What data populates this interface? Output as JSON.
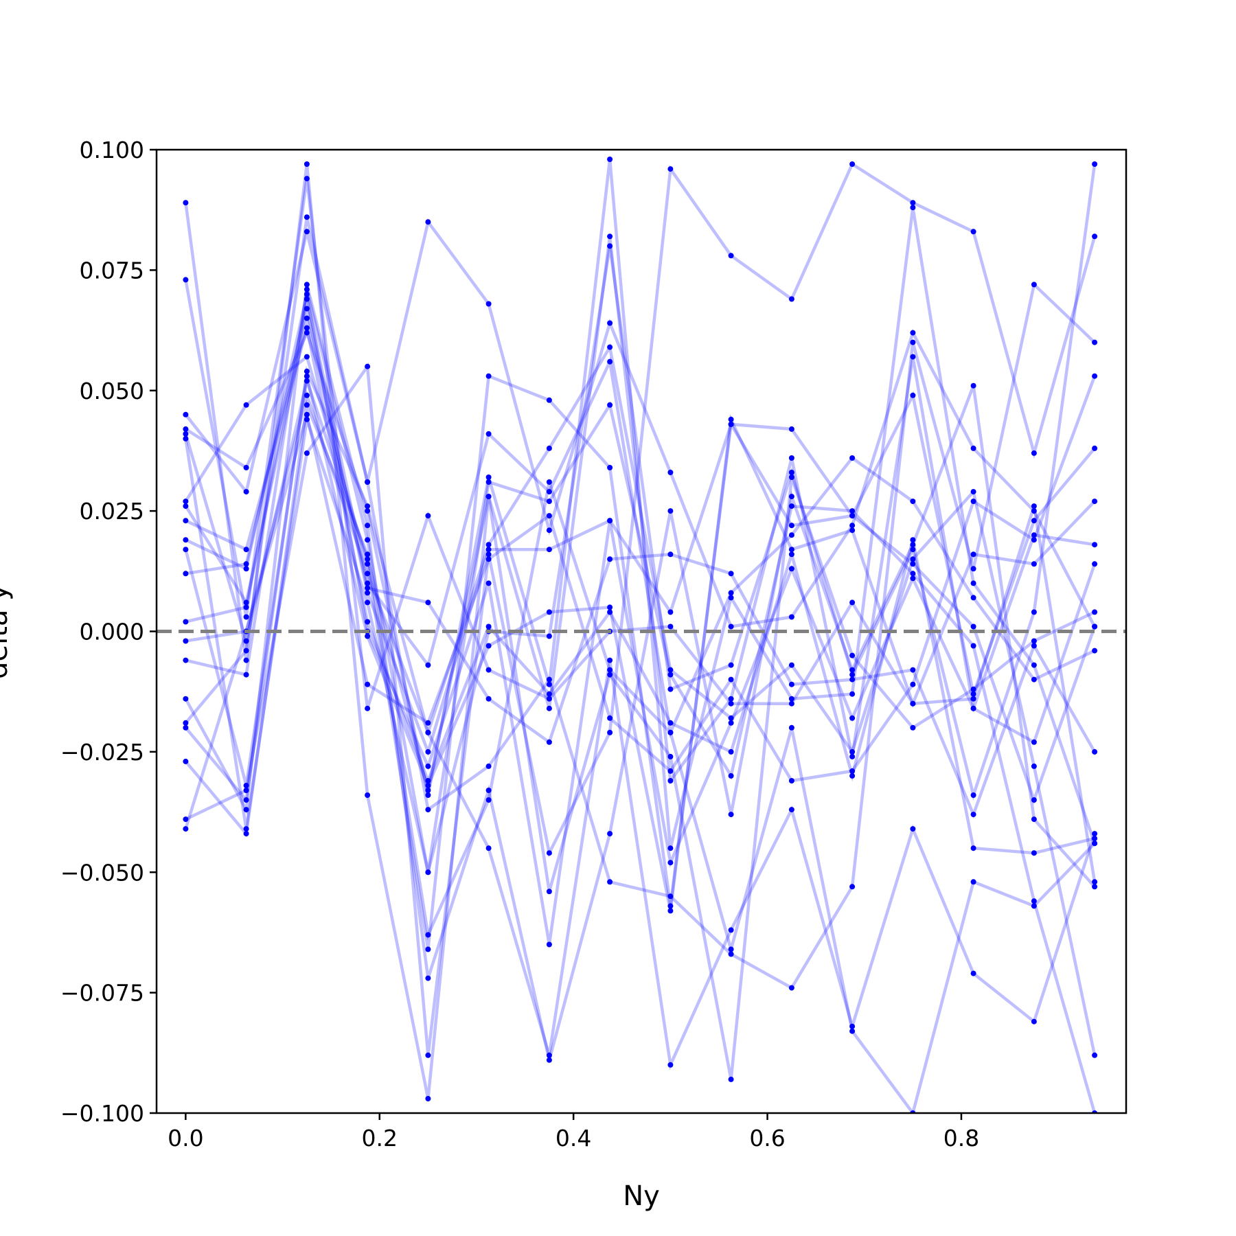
{
  "chart_data": {
    "type": "line",
    "title": "",
    "xlabel": "Ny",
    "ylabel": "delta y",
    "xlim": [
      -0.03,
      0.97
    ],
    "ylim": [
      -0.1,
      0.1
    ],
    "grid": false,
    "reference_line": {
      "y": 0.0,
      "style": "dashed",
      "color": "#808080"
    },
    "line_color": "#0000ff",
    "line_opacity": 0.25,
    "point_color": "#0000ff",
    "x_ticks": [
      0.0,
      0.2,
      0.4,
      0.6,
      0.8
    ],
    "x_tick_labels": [
      "0.0",
      "0.2",
      "0.4",
      "0.6",
      "0.8"
    ],
    "y_ticks": [
      -0.1,
      -0.075,
      -0.05,
      -0.025,
      0.0,
      0.025,
      0.05,
      0.075,
      0.1
    ],
    "y_tick_labels": [
      "−0.100",
      "−0.075",
      "−0.050",
      "−0.025",
      "0.000",
      "0.025",
      "0.050",
      "0.075",
      "0.100"
    ],
    "x": [
      0.0,
      0.0625,
      0.125,
      0.1875,
      0.25,
      0.3125,
      0.375,
      0.4375,
      0.5,
      0.5625,
      0.625,
      0.6875,
      0.75,
      0.8125,
      0.875,
      0.9375
    ],
    "series": [
      {
        "values": [
          0.045,
          0.029,
          0.083,
          0.031,
          0.085,
          0.068,
          0.021,
          0.064,
          0.033,
          0.001,
          0.003,
          0.022,
          0.062,
          0.038,
          0.025,
          0.001
        ]
      },
      {
        "values": [
          0.042,
          0.034,
          0.062,
          0.025,
          -0.034,
          0.032,
          -0.011,
          0.098,
          -0.045,
          0.007,
          -0.014,
          -0.013,
          0.088,
          0.01,
          -0.007,
          -0.044
        ]
      },
      {
        "values": [
          0.041,
          -0.002,
          0.052,
          0.015,
          -0.033,
          0.028,
          -0.016,
          0.082,
          -0.031,
          -0.014,
          0.036,
          -0.026,
          0.057,
          -0.016,
          -0.023,
          0.014
        ]
      },
      {
        "values": [
          0.04,
          -0.041,
          0.044,
          0.006,
          -0.05,
          0.0,
          -0.001,
          0.08,
          -0.012,
          -0.007,
          0.033,
          -0.009,
          0.017,
          -0.034,
          0.004,
          0.097
        ]
      },
      {
        "values": [
          0.027,
          0.047,
          0.057,
          0.014,
          -0.066,
          0.053,
          0.048,
          0.034,
          -0.057,
          0.043,
          0.022,
          0.024,
          0.049,
          -0.013,
          0.023,
          0.038
        ]
      },
      {
        "values": [
          0.026,
          0.006,
          0.065,
          0.009,
          0.006,
          -0.014,
          -0.023,
          0.015,
          0.016,
          0.012,
          -0.011,
          -0.01,
          -0.008,
          -0.038,
          -0.003,
          -0.025
        ]
      },
      {
        "values": [
          0.023,
          0.017,
          0.063,
          0.002,
          -0.031,
          0.001,
          -0.013,
          0.004,
          -0.019,
          -0.025,
          0.016,
          -0.03,
          0.019,
          -0.045,
          -0.046,
          -0.043
        ]
      },
      {
        "values": [
          0.019,
          0.013,
          0.07,
          0.0,
          -0.028,
          0.01,
          -0.065,
          0.023,
          -0.048,
          -0.019,
          0.013,
          -0.018,
          0.011,
          -0.016,
          0.02,
          0.018
        ]
      },
      {
        "values": [
          0.017,
          -0.032,
          0.053,
          -0.001,
          -0.032,
          -0.003,
          0.004,
          0.005,
          -0.058,
          0.044,
          0.017,
          0.021,
          -0.015,
          0.016,
          0.014,
          0.027
        ]
      },
      {
        "values": [
          0.012,
          0.014,
          0.067,
          0.008,
          -0.025,
          0.017,
          0.017,
          0.023,
          0.004,
          0.043,
          0.042,
          0.024,
          0.014,
          0.001,
          -0.035,
          0.001
        ]
      },
      {
        "values": [
          0.002,
          0.005,
          0.069,
          0.01,
          -0.007,
          0.041,
          0.029,
          0.056,
          -0.021,
          0.008,
          0.02,
          0.036,
          0.027,
          0.007,
          -0.01,
          -0.004
        ]
      },
      {
        "values": [
          -0.002,
          0.0,
          0.049,
          0.012,
          -0.021,
          0.018,
          0.038,
          0.059,
          -0.008,
          -0.018,
          -0.007,
          -0.025,
          0.015,
          0.029,
          -0.028,
          -0.088
        ]
      },
      {
        "values": [
          -0.006,
          -0.009,
          0.071,
          0.019,
          -0.05,
          0.031,
          0.027,
          0.047,
          -0.009,
          -0.03,
          0.026,
          0.025,
          0.012,
          -0.003,
          -0.056,
          -0.1
        ]
      },
      {
        "values": [
          -0.014,
          -0.037,
          0.072,
          0.022,
          -0.072,
          -0.033,
          -0.089,
          -0.042,
          0.025,
          -0.038,
          0.028,
          -0.008,
          0.018,
          0.051,
          -0.039,
          -0.053
        ]
      },
      {
        "values": [
          -0.019,
          -0.004,
          0.086,
          0.031,
          -0.037,
          -0.028,
          -0.01,
          -0.052,
          -0.055,
          -0.067,
          -0.074,
          -0.053,
          0.06,
          0.013,
          0.072,
          0.06
        ]
      },
      {
        "values": [
          -0.02,
          -0.035,
          0.054,
          0.026,
          -0.021,
          -0.045,
          -0.088,
          -0.006,
          -0.09,
          -0.062,
          -0.037,
          -0.082,
          -0.041,
          -0.071,
          -0.081,
          -0.042
        ]
      },
      {
        "values": [
          -0.027,
          -0.042,
          0.047,
          0.016,
          -0.063,
          -0.035,
          0.031,
          -0.008,
          -0.021,
          -0.066,
          -0.02,
          -0.083,
          -0.1,
          -0.052,
          -0.057,
          -0.044
        ]
      },
      {
        "values": [
          -0.039,
          -0.033,
          0.037,
          0.055,
          -0.088,
          0.016,
          -0.046,
          -0.021,
          0.096,
          0.078,
          0.069,
          0.097,
          0.089,
          0.083,
          0.037,
          0.082
        ]
      },
      {
        "values": [
          -0.041,
          0.0,
          0.045,
          -0.011,
          -0.019,
          0.015,
          0.024,
          -0.018,
          -0.029,
          -0.01,
          -0.031,
          -0.029,
          -0.011,
          0.027,
          0.019,
          0.053
        ]
      },
      {
        "values": [
          0.073,
          0.003,
          0.094,
          -0.016,
          0.024,
          -0.008,
          -0.014,
          0.0,
          0.001,
          -0.015,
          -0.015,
          0.006,
          -0.015,
          -0.014,
          0.026,
          -0.052
        ]
      },
      {
        "values": [
          0.089,
          -0.006,
          0.097,
          -0.034,
          -0.097,
          0.028,
          -0.054,
          -0.009,
          -0.026,
          -0.093,
          0.032,
          -0.005,
          -0.02,
          -0.012,
          -0.002,
          0.004
        ]
      }
    ]
  }
}
